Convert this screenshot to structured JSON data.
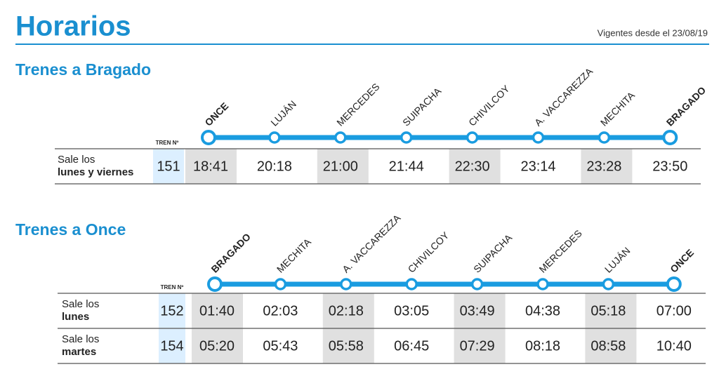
{
  "header": {
    "title": "Horarios",
    "valid": "Vigentes desde el 23/08/19"
  },
  "sections": [
    {
      "title": "Trenes a Bragado",
      "train_label": "TREN Nº",
      "stations": [
        "ONCE",
        "LUJÁN",
        "MERCEDES",
        "SUIPACHA",
        "CHIVILCOY",
        "A. VACCAREZZA",
        "MECHITA",
        "BRAGADO"
      ],
      "rows": [
        {
          "label": "Sale los",
          "days": "lunes y viernes",
          "train": "151",
          "times": [
            "18:41",
            "20:18",
            "21:00",
            "21:44",
            "22:30",
            "23:14",
            "23:28",
            "23:50"
          ]
        }
      ]
    },
    {
      "title": "Trenes a Once",
      "train_label": "TREN Nº",
      "stations": [
        "BRAGADO",
        "MECHITA",
        "A. VACCAREZZA",
        "CHIVILCOY",
        "SUIPACHA",
        "MERCEDES",
        "LUJÁN",
        "ONCE"
      ],
      "rows": [
        {
          "label": "Sale los",
          "days": "lunes",
          "train": "152",
          "times": [
            "01:40",
            "02:03",
            "02:18",
            "03:05",
            "03:49",
            "04:38",
            "05:18",
            "07:00"
          ]
        },
        {
          "label": "Sale los",
          "days": "martes",
          "train": "154",
          "times": [
            "05:20",
            "05:43",
            "05:58",
            "06:45",
            "07:29",
            "08:18",
            "08:58",
            "10:40"
          ]
        }
      ]
    }
  ]
}
